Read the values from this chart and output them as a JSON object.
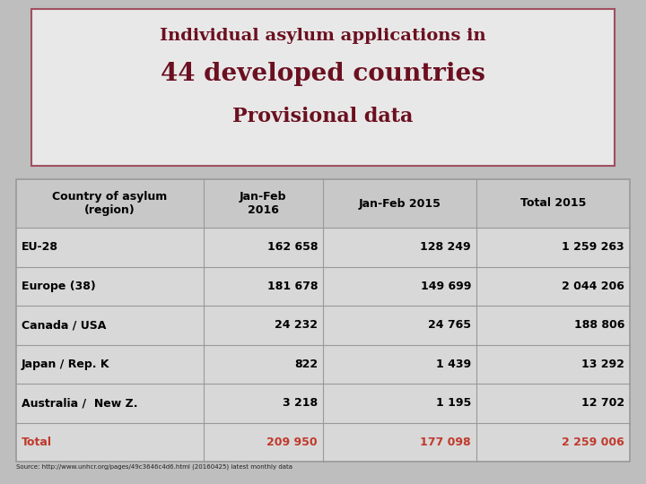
{
  "title_line1": "Individual asylum applications in",
  "title_line2": "44 developed countries",
  "title_line3": "Provisional data",
  "title_color": "#6B1020",
  "title_bg_color": "#E8E8E8",
  "title_border_color": "#A05060",
  "bg_color": "#BEBEBE",
  "col_headers": [
    "Country of asylum\n(region)",
    "Jan-Feb\n2016",
    "Jan-Feb 2015",
    "Total 2015"
  ],
  "rows": [
    [
      "EU-28",
      "162 658",
      "128 249",
      "1 259 263"
    ],
    [
      "Europe (38)",
      "181 678",
      "149 699",
      "2 044 206"
    ],
    [
      "Canada / USA",
      "24 232",
      "24 765",
      "188 806"
    ],
    [
      "Japan / Rep. K",
      "822",
      "1 439",
      "13 292"
    ],
    [
      "Australia /  New Z.",
      "3 218",
      "1 195",
      "12 702"
    ],
    [
      "Total",
      "209 950",
      "177 098",
      "2 259 006"
    ]
  ],
  "total_row_color": "#C0392B",
  "header_text_color": "#000000",
  "row_text_color": "#000000",
  "source_text": "Source: http://www.unhcr.org/pages/49c3646c4d6.html (20160425) latest monthly data",
  "row_bg": "#D8D8D8",
  "header_bg": "#C8C8C8",
  "grid_color": "#999999"
}
